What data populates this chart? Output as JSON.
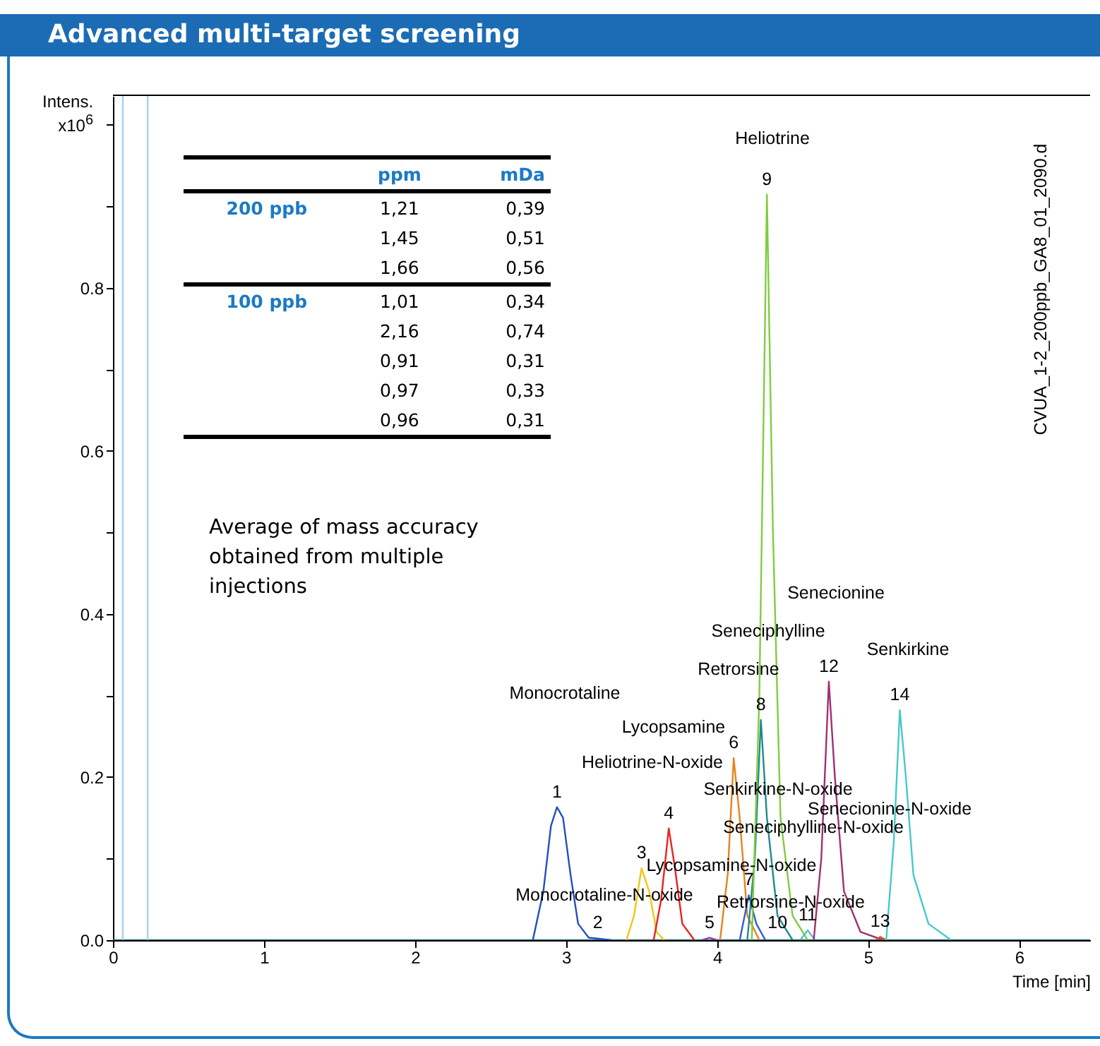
{
  "chart_data": {
    "type": "line",
    "title": "Advanced multi-target screening",
    "xlabel": "Time [min]",
    "ylabel": "Intens.\nx10$^{6}$",
    "xlim": [
      0,
      6.47
    ],
    "xticks": [
      0,
      1,
      2,
      3,
      4,
      5,
      6
    ],
    "ylim": [
      0,
      1.035
    ],
    "yticks": [
      {
        "value": 0,
        "label": "0.0"
      },
      {
        "value": 0.1,
        "label": null
      },
      {
        "value": 0.2,
        "label": "0.2"
      },
      {
        "value": 0.3,
        "label": null
      },
      {
        "value": 0.4,
        "label": "0.4"
      },
      {
        "value": 0.5,
        "label": null
      },
      {
        "value": 0.6,
        "label": "0.6"
      },
      {
        "value": 0.7,
        "label": null
      },
      {
        "value": 0.8,
        "label": "0.8"
      },
      {
        "value": 0.9,
        "label": null
      },
      {
        "value": 1,
        "label": null
      }
    ],
    "grid": false,
    "legend": false,
    "series": [
      {
        "color": "#2a7a8a",
        "x": [
          0,
          6.47
        ],
        "values": [
          0,
          0
        ]
      },
      {
        "color": "#2050c0",
        "x": [
          2.78,
          2.85,
          2.9,
          2.94,
          2.98,
          3.03,
          3.08,
          3.15,
          3.3
        ],
        "values": [
          0,
          0.06,
          0.14,
          0.163,
          0.15,
          0.08,
          0.02,
          0.003,
          0
        ]
      },
      {
        "color": "#f5c518",
        "x": [
          3.4,
          3.45,
          3.5,
          3.55,
          3.6,
          3.65
        ],
        "values": [
          0,
          0.03,
          0.088,
          0.06,
          0.01,
          0
        ]
      },
      {
        "color": "#e8231f",
        "x": [
          3.58,
          3.63,
          3.68,
          3.72,
          3.77,
          3.85
        ],
        "values": [
          0,
          0.05,
          0.137,
          0.09,
          0.02,
          0
        ]
      },
      {
        "color": "#9040b0",
        "x": [
          3.9,
          3.95,
          4.0
        ],
        "values": [
          0,
          0.003,
          0
        ]
      },
      {
        "color": "#e8821e",
        "x": [
          4.02,
          4.07,
          4.11,
          4.15,
          4.2,
          4.28
        ],
        "values": [
          0,
          0.08,
          0.223,
          0.15,
          0.03,
          0
        ]
      },
      {
        "color": "#3060d0",
        "x": [
          4.15,
          4.21,
          4.26,
          4.32
        ],
        "values": [
          0,
          0.055,
          0.02,
          0
        ]
      },
      {
        "color": "#208a8a",
        "x": [
          4.2,
          4.25,
          4.29,
          4.33,
          4.4,
          4.5
        ],
        "values": [
          0,
          0.1,
          0.27,
          0.15,
          0.03,
          0
        ]
      },
      {
        "color": "#80cc40",
        "x": [
          4.23,
          4.28,
          4.33,
          4.37,
          4.42,
          4.5,
          4.6
        ],
        "values": [
          0,
          0.3,
          0.914,
          0.5,
          0.15,
          0.03,
          0
        ]
      },
      {
        "color": "#50c0c0",
        "x": [
          4.55,
          4.6,
          4.65
        ],
        "values": [
          0,
          0.012,
          0
        ]
      },
      {
        "color": "#a0306e",
        "x": [
          4.64,
          4.69,
          4.74,
          4.78,
          4.84,
          4.95,
          5.1
        ],
        "values": [
          0,
          0.1,
          0.317,
          0.2,
          0.06,
          0.01,
          0
        ]
      },
      {
        "color": "#e05020",
        "x": [
          5.05,
          5.08,
          5.12
        ],
        "values": [
          0,
          0.004,
          0
        ]
      },
      {
        "color": "#48c8c8",
        "x": [
          5.12,
          5.17,
          5.21,
          5.25,
          5.3,
          5.4,
          5.55
        ],
        "values": [
          0,
          0.12,
          0.282,
          0.2,
          0.08,
          0.02,
          0
        ]
      }
    ],
    "ref_lines": [
      {
        "axis": "x",
        "value": 0.065,
        "color": "#a8cfee"
      },
      {
        "axis": "x",
        "value": 0.23,
        "color": "#a8cfee"
      }
    ],
    "annotations": [
      {
        "text": "1",
        "x": 2.94,
        "y": 0.163
      },
      {
        "text": "2",
        "x": 3.21,
        "y": 0.003
      },
      {
        "text": "3",
        "x": 3.5,
        "y": 0.088
      },
      {
        "text": "4",
        "x": 3.68,
        "y": 0.137
      },
      {
        "text": "5",
        "x": 3.95,
        "y": 0.003
      },
      {
        "text": "6",
        "x": 4.11,
        "y": 0.223
      },
      {
        "text": "7",
        "x": 4.21,
        "y": 0.055
      },
      {
        "text": "8",
        "x": 4.29,
        "y": 0.27
      },
      {
        "text": "9",
        "x": 4.33,
        "y": 0.914
      },
      {
        "text": "10",
        "x": 4.4,
        "y": 0.003
      },
      {
        "text": "11",
        "x": 4.6,
        "y": 0.012
      },
      {
        "text": "12",
        "x": 4.74,
        "y": 0.317
      },
      {
        "text": "13",
        "x": 5.08,
        "y": 0.004
      },
      {
        "text": "14",
        "x": 5.21,
        "y": 0.282
      },
      "Heliotrine",
      "Senecionine",
      "Seneciphylline",
      "Senkirkine",
      "Retrorsine",
      "Monocrotaline",
      "Lycopsamine",
      "Heliotrine-N-oxide",
      "Senkirkine-N-oxide",
      "Senecionine-N-oxide",
      "Seneciphylline-N-oxide",
      "Lycopsamine-N-oxide",
      "Monocrotaline-N-oxide",
      "Retrorsine-N-oxide",
      "ppm",
      "mDa",
      "200 ppb",
      "1,21",
      "0,39",
      "1,45",
      "0,51",
      "1,66",
      "0,56",
      "100 ppb",
      "1,01",
      "0,34",
      "2,16",
      "0,74",
      "0,91",
      "0,31",
      "0,97",
      "0,33",
      "0,96",
      "0,31",
      "Average of mass accuracy obtained from multiple injections",
      "CVUA_1-2_200ppb_GA8_01_2090.d"
    ]
  }
}
